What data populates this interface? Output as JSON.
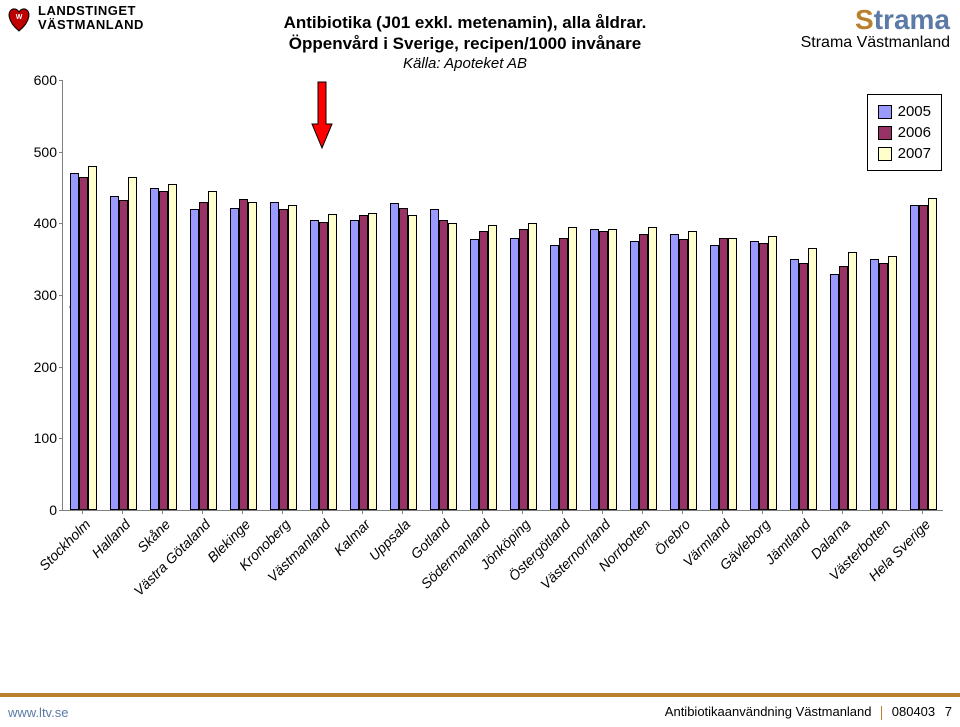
{
  "meta": {
    "logo_left": {
      "line1": "LANDSTINGET",
      "line2": "VÄSTMANLAND",
      "heart_color": "#c00000",
      "text_color": "#000000"
    },
    "logo_right": {
      "brand_html": "Strama",
      "brand_s_color": "#b9812e",
      "brand_rest_color": "#5b7ba6",
      "tagline": "Strama Västmanland"
    },
    "title_line1": "Antibiotika (J01 exkl. metenamin), alla åldrar.",
    "title_line2": "Öppenvård i Sverige, recipen/1000 invånare",
    "source": "Källa: Apoteket AB"
  },
  "chart": {
    "type": "bar",
    "y_axis_label": "Recipen/1000 invånare",
    "ylim": [
      0,
      600
    ],
    "ytick_step": 100,
    "ytick_labels": [
      "0",
      "100",
      "200",
      "300",
      "400",
      "500",
      "600"
    ],
    "grid": false,
    "background_color": "#ffffff",
    "axis_color": "#808080",
    "bar_border_color": "#000000",
    "series": [
      {
        "name": "2005",
        "color": "#9999ff"
      },
      {
        "name": "2006",
        "color": "#993366"
      },
      {
        "name": "2007",
        "color": "#ffffcc"
      }
    ],
    "categories": [
      "Stockholm",
      "Halland",
      "Skåne",
      "Västra Götaland",
      "Blekinge",
      "Kronoberg",
      "Västmanland",
      "Kalmar",
      "Uppsala",
      "Gotland",
      "Södermanland",
      "Jönköping",
      "Östergötland",
      "Västernorrland",
      "Norrbotten",
      "Örebro",
      "Värmland",
      "Gävleborg",
      "Jämtland",
      "Dalarna",
      "Västerbotten",
      "Hela Sverige"
    ],
    "values": {
      "2005": [
        470,
        438,
        450,
        420,
        422,
        430,
        405,
        405,
        428,
        420,
        378,
        380,
        370,
        392,
        375,
        385,
        370,
        375,
        350,
        330,
        350,
        425
      ],
      "2006": [
        465,
        432,
        445,
        430,
        434,
        420,
        402,
        412,
        422,
        405,
        390,
        392,
        380,
        390,
        385,
        378,
        380,
        372,
        345,
        340,
        345,
        425
      ],
      "2007": [
        480,
        465,
        455,
        445,
        430,
        425,
        413,
        415,
        412,
        400,
        398,
        400,
        395,
        392,
        395,
        390,
        380,
        382,
        365,
        360,
        355,
        435
      ]
    },
    "highlight_arrow": {
      "target_category_index": 6,
      "fill": "#ff0000",
      "stroke": "#000000"
    }
  },
  "legend": {
    "position": "top-right",
    "border_color": "#000000"
  },
  "footer": {
    "left": "www.ltv.se",
    "right_text": "Antibiotikaanvändning Västmanland",
    "right_date": "080403",
    "page": "7",
    "border_color": "#b9812e"
  }
}
